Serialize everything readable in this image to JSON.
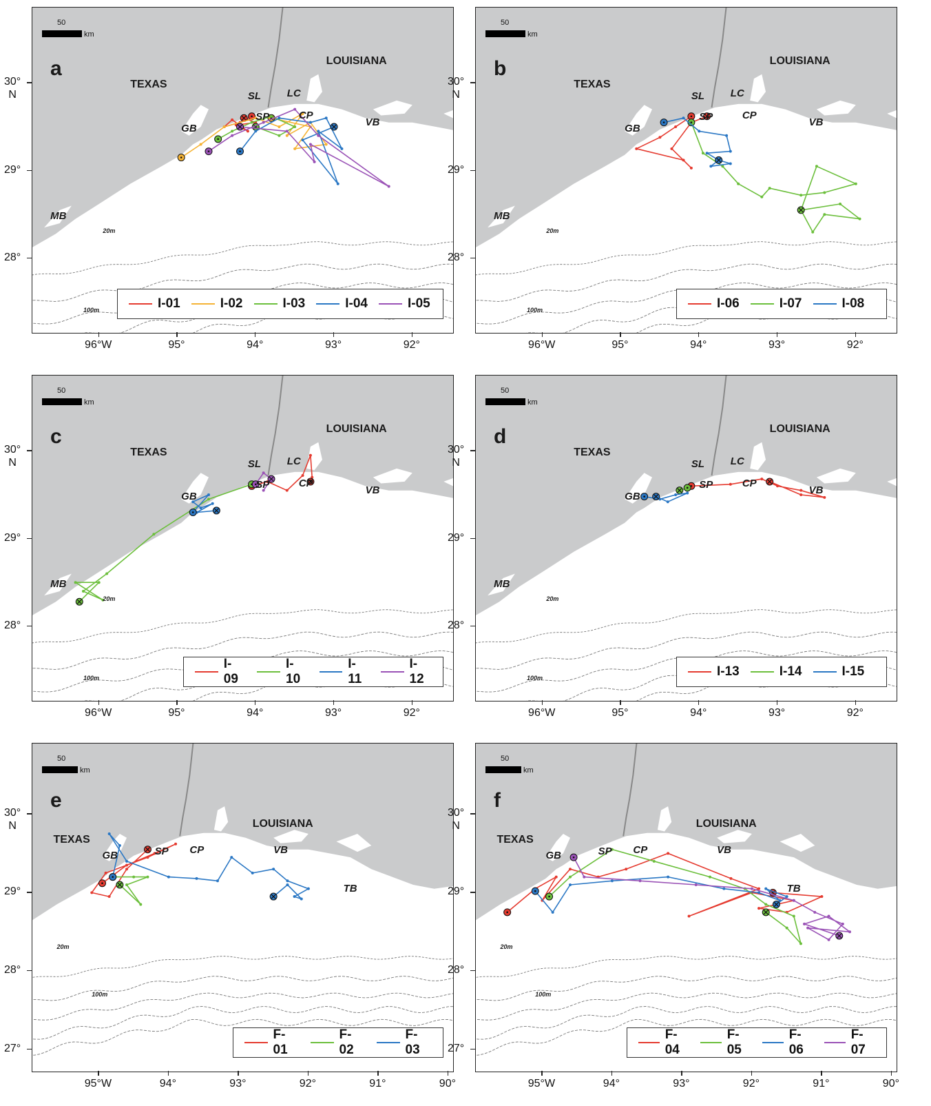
{
  "colors": {
    "land": "#cacbcc",
    "water": "#ffffff",
    "isobath": "#777777",
    "red": "#e53b30",
    "orange": "#f5b335",
    "green": "#6cbf3c",
    "blue": "#2a77c4",
    "purple": "#9a52b6"
  },
  "scale_bar": {
    "number": "50",
    "unit": "km"
  },
  "panels": [
    {
      "letter": "a",
      "states": [
        "TEXAS",
        "LOUISIANA"
      ],
      "places": [
        "GB",
        "SL",
        "LC",
        "SP",
        "CP",
        "VB",
        "MB"
      ],
      "depths": [
        "20m",
        "100m"
      ],
      "lat_labels": [
        "30°\nN",
        "29°",
        "28°"
      ],
      "lon_labels": [
        "96°W",
        "95°",
        "94°",
        "93°",
        "92°"
      ],
      "legend": [
        {
          "name": "I-01",
          "color": "red"
        },
        {
          "name": "I-02",
          "color": "orange"
        },
        {
          "name": "I-03",
          "color": "green"
        },
        {
          "name": "I-04",
          "color": "blue"
        },
        {
          "name": "I-05",
          "color": "purple"
        }
      ]
    },
    {
      "letter": "b",
      "states": [
        "TEXAS",
        "LOUISIANA"
      ],
      "places": [
        "GB",
        "SL",
        "LC",
        "SP",
        "CP",
        "VB",
        "MB"
      ],
      "depths": [
        "20m",
        "100m"
      ],
      "lat_labels": [
        "30°\nN",
        "29°",
        "28°"
      ],
      "lon_labels": [
        "96°W",
        "95°",
        "94°",
        "93°",
        "92°"
      ],
      "legend": [
        {
          "name": "I-06",
          "color": "red"
        },
        {
          "name": "I-07",
          "color": "green"
        },
        {
          "name": "I-08",
          "color": "blue"
        }
      ]
    },
    {
      "letter": "c",
      "states": [
        "TEXAS",
        "LOUISIANA"
      ],
      "places": [
        "GB",
        "SL",
        "LC",
        "SP",
        "CP",
        "VB",
        "MB"
      ],
      "depths": [
        "20m",
        "100m"
      ],
      "lat_labels": [
        "30°\nN",
        "29°",
        "28°"
      ],
      "lon_labels": [
        "96°W",
        "95°",
        "94°",
        "93°",
        "92°"
      ],
      "legend": [
        {
          "name": "I-09",
          "color": "red"
        },
        {
          "name": "I-10",
          "color": "green"
        },
        {
          "name": "I-11",
          "color": "blue"
        },
        {
          "name": "I-12",
          "color": "purple"
        }
      ]
    },
    {
      "letter": "d",
      "states": [
        "TEXAS",
        "LOUISIANA"
      ],
      "places": [
        "GB",
        "SL",
        "LC",
        "SP",
        "CP",
        "VB",
        "MB"
      ],
      "depths": [
        "20m",
        "100m"
      ],
      "lat_labels": [
        "30°\nN",
        "29°",
        "28°"
      ],
      "lon_labels": [
        "96°W",
        "95°",
        "94°",
        "93°",
        "92°"
      ],
      "legend": [
        {
          "name": "I-13",
          "color": "red"
        },
        {
          "name": "I-14",
          "color": "green"
        },
        {
          "name": "I-15",
          "color": "blue"
        }
      ]
    },
    {
      "letter": "e",
      "states": [
        "TEXAS",
        "LOUISIANA"
      ],
      "places": [
        "GB",
        "SP",
        "CP",
        "VB",
        "TB"
      ],
      "depths": [
        "20m",
        "100m"
      ],
      "lat_labels": [
        "30°\nN",
        "29°",
        "28°",
        "27°"
      ],
      "lon_labels": [
        "95°W",
        "94°",
        "93°",
        "92°",
        "91°",
        "90°"
      ],
      "legend": [
        {
          "name": "F-01",
          "color": "red"
        },
        {
          "name": "F-02",
          "color": "green"
        },
        {
          "name": "F-03",
          "color": "blue"
        }
      ]
    },
    {
      "letter": "f",
      "states": [
        "TEXAS",
        "LOUISIANA"
      ],
      "places": [
        "GB",
        "SP",
        "CP",
        "VB",
        "TB"
      ],
      "depths": [
        "20m",
        "100m"
      ],
      "lat_labels": [
        "30°\nN",
        "29°",
        "28°",
        "27°"
      ],
      "lon_labels": [
        "95°W",
        "94°",
        "93°",
        "92°",
        "91°",
        "90°"
      ],
      "legend": [
        {
          "name": "F-04",
          "color": "red"
        },
        {
          "name": "F-05",
          "color": "green"
        },
        {
          "name": "F-06",
          "color": "blue"
        },
        {
          "name": "F-07",
          "color": "purple"
        }
      ]
    }
  ]
}
